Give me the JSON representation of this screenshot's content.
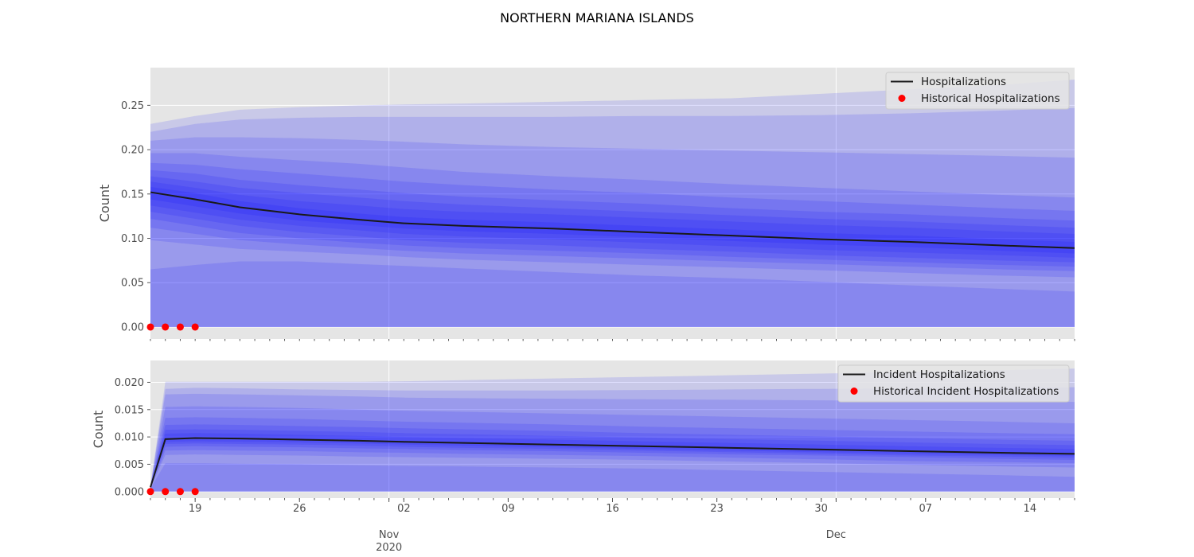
{
  "figure": {
    "title": "NORTHERN MARIANA ISLANDS",
    "colors": {
      "panel_bg": "#e5e5e5",
      "grid": "#ffffff",
      "band": "#0000ff",
      "median_line": "#1a1a1a",
      "historical_point": "#ff0000",
      "tick_text": "#4d4d4d"
    }
  },
  "x_axis": {
    "day_ticks": [
      "19",
      "26",
      "02",
      "09",
      "16",
      "23",
      "30",
      "07",
      "14"
    ],
    "month_labels": [
      "Nov\n2020",
      "Dec"
    ]
  },
  "chart_data": [
    {
      "type": "area",
      "title": "",
      "ylabel": "Count",
      "ylim": [
        -0.0135,
        0.2925
      ],
      "yticks": [
        "0.00",
        "0.05",
        "0.10",
        "0.15",
        "0.20",
        "0.25"
      ],
      "grid": true,
      "legend": {
        "position": "top-right",
        "entries": [
          "Hospitalizations",
          "Historical Hospitalizations"
        ]
      },
      "x": [
        "2020-10-16",
        "2020-10-19",
        "2020-10-22",
        "2020-10-26",
        "2020-10-30",
        "2020-11-02",
        "2020-11-06",
        "2020-11-12",
        "2020-11-18",
        "2020-11-24",
        "2020-11-30",
        "2020-12-06",
        "2020-12-12",
        "2020-12-17"
      ],
      "series": [
        {
          "name": "Hospitalizations",
          "values": [
            0.152,
            0.144,
            0.135,
            0.127,
            0.121,
            0.117,
            0.114,
            0.111,
            0.107,
            0.103,
            0.099,
            0.096,
            0.092,
            0.089
          ]
        },
        {
          "name": "Historical Hospitalizations",
          "x": [
            "2020-10-16",
            "2020-10-17",
            "2020-10-18",
            "2020-10-19"
          ],
          "values": [
            0.0,
            0.0,
            0.0,
            0.0
          ]
        }
      ],
      "bands": [
        {
          "lower": [
            0.0,
            0.0,
            0.0,
            0.0,
            0.0,
            0.0,
            0.0,
            0.0,
            0.0,
            0.0,
            0.0,
            0.0,
            0.0,
            0.0
          ],
          "upper": [
            0.229,
            0.238,
            0.245,
            0.248,
            0.25,
            0.251,
            0.252,
            0.254,
            0.256,
            0.258,
            0.263,
            0.268,
            0.273,
            0.279
          ]
        },
        {
          "lower": [
            0.0,
            0.0,
            0.0,
            0.0,
            0.0,
            0.0,
            0.0,
            0.0,
            0.0,
            0.0,
            0.0,
            0.0,
            0.0,
            0.0
          ],
          "upper": [
            0.22,
            0.229,
            0.234,
            0.236,
            0.237,
            0.237,
            0.237,
            0.237,
            0.238,
            0.238,
            0.239,
            0.241,
            0.244,
            0.247
          ]
        },
        {
          "lower": [
            0.0,
            0.0,
            0.0,
            0.0,
            0.0,
            0.0,
            0.0,
            0.0,
            0.0,
            0.0,
            0.0,
            0.0,
            0.0,
            0.0
          ],
          "upper": [
            0.21,
            0.214,
            0.214,
            0.213,
            0.211,
            0.209,
            0.206,
            0.203,
            0.201,
            0.199,
            0.197,
            0.195,
            0.193,
            0.191
          ]
        },
        {
          "lower": [
            0.065,
            0.07,
            0.074,
            0.074,
            0.071,
            0.069,
            0.066,
            0.062,
            0.058,
            0.055,
            0.051,
            0.047,
            0.043,
            0.04
          ]
        },
        {
          "lower": [
            0.098,
            0.093,
            0.088,
            0.085,
            0.082,
            0.079,
            0.076,
            0.073,
            0.07,
            0.067,
            0.064,
            0.061,
            0.058,
            0.056
          ],
          "upper": [
            0.196,
            0.196,
            0.192,
            0.188,
            0.184,
            0.18,
            0.175,
            0.17,
            0.166,
            0.161,
            0.157,
            0.153,
            0.149,
            0.146
          ]
        },
        {
          "lower": [
            0.112,
            0.105,
            0.098,
            0.093,
            0.089,
            0.086,
            0.083,
            0.08,
            0.077,
            0.074,
            0.071,
            0.068,
            0.065,
            0.063
          ],
          "upper": [
            0.185,
            0.183,
            0.178,
            0.173,
            0.168,
            0.164,
            0.16,
            0.155,
            0.151,
            0.146,
            0.142,
            0.138,
            0.134,
            0.131
          ]
        },
        {
          "lower": [
            0.122,
            0.114,
            0.106,
            0.1,
            0.095,
            0.092,
            0.089,
            0.086,
            0.083,
            0.079,
            0.076,
            0.073,
            0.07,
            0.068
          ],
          "upper": [
            0.177,
            0.173,
            0.166,
            0.16,
            0.155,
            0.151,
            0.147,
            0.143,
            0.139,
            0.134,
            0.13,
            0.127,
            0.123,
            0.12
          ]
        },
        {
          "lower": [
            0.13,
            0.122,
            0.114,
            0.107,
            0.102,
            0.098,
            0.095,
            0.092,
            0.088,
            0.085,
            0.081,
            0.078,
            0.075,
            0.073
          ],
          "upper": [
            0.17,
            0.164,
            0.157,
            0.151,
            0.146,
            0.142,
            0.138,
            0.134,
            0.13,
            0.126,
            0.122,
            0.119,
            0.115,
            0.112
          ]
        },
        {
          "lower": [
            0.137,
            0.129,
            0.121,
            0.114,
            0.109,
            0.105,
            0.102,
            0.099,
            0.095,
            0.091,
            0.087,
            0.084,
            0.081,
            0.078
          ],
          "upper": [
            0.164,
            0.157,
            0.149,
            0.142,
            0.137,
            0.133,
            0.13,
            0.127,
            0.123,
            0.119,
            0.115,
            0.112,
            0.108,
            0.105
          ]
        },
        {
          "lower": [
            0.144,
            0.136,
            0.128,
            0.12,
            0.115,
            0.111,
            0.108,
            0.105,
            0.101,
            0.097,
            0.093,
            0.09,
            0.086,
            0.083
          ],
          "upper": [
            0.158,
            0.151,
            0.142,
            0.134,
            0.128,
            0.124,
            0.121,
            0.118,
            0.114,
            0.11,
            0.106,
            0.103,
            0.099,
            0.096
          ]
        }
      ]
    },
    {
      "type": "area",
      "title": "",
      "ylabel": "Count",
      "ylim": [
        -0.0012,
        0.024
      ],
      "yticks": [
        "0.000",
        "0.005",
        "0.010",
        "0.015",
        "0.020"
      ],
      "grid": true,
      "legend": {
        "position": "top-right",
        "entries": [
          "Incident Hospitalizations",
          "Historical Incident Hospitalizations"
        ]
      },
      "x": [
        "2020-10-16",
        "2020-10-17",
        "2020-10-19",
        "2020-10-22",
        "2020-10-26",
        "2020-10-30",
        "2020-11-02",
        "2020-11-06",
        "2020-11-12",
        "2020-11-18",
        "2020-11-24",
        "2020-11-30",
        "2020-12-06",
        "2020-12-12",
        "2020-12-17"
      ],
      "series": [
        {
          "name": "Incident Hospitalizations",
          "values": [
            0.0008,
            0.0096,
            0.0098,
            0.0097,
            0.0095,
            0.0093,
            0.0091,
            0.0089,
            0.0086,
            0.0083,
            0.008,
            0.0077,
            0.0074,
            0.0071,
            0.0069
          ]
        },
        {
          "name": "Historical Incident Hospitalizations",
          "x": [
            "2020-10-16",
            "2020-10-17",
            "2020-10-18",
            "2020-10-19"
          ],
          "values": [
            0.0,
            0.0,
            0.0,
            0.0
          ]
        }
      ],
      "bands": [
        {
          "lower": [
            0.0,
            0.0,
            0.0,
            0.0,
            0.0,
            0.0,
            0.0,
            0.0,
            0.0,
            0.0,
            0.0,
            0.0,
            0.0,
            0.0,
            0.0
          ],
          "upper": [
            0.001,
            0.0201,
            0.0201,
            0.0201,
            0.0201,
            0.0201,
            0.0202,
            0.0204,
            0.0207,
            0.021,
            0.0213,
            0.0216,
            0.0219,
            0.0222,
            0.0225
          ]
        },
        {
          "lower": [
            0.0,
            0.0,
            0.0,
            0.0,
            0.0,
            0.0,
            0.0,
            0.0,
            0.0,
            0.0,
            0.0,
            0.0,
            0.0,
            0.0,
            0.0
          ],
          "upper": [
            0.001,
            0.0188,
            0.019,
            0.0189,
            0.0187,
            0.0186,
            0.0185,
            0.0185,
            0.0185,
            0.0186,
            0.0187,
            0.0188,
            0.0189,
            0.019,
            0.0191
          ]
        },
        {
          "lower": [
            0.0,
            0.0,
            0.0,
            0.0,
            0.0,
            0.0,
            0.0,
            0.0,
            0.0,
            0.0,
            0.0,
            0.0,
            0.0,
            0.0,
            0.0
          ],
          "upper": [
            0.001,
            0.0178,
            0.0179,
            0.0178,
            0.0176,
            0.0174,
            0.0172,
            0.0171,
            0.017,
            0.0169,
            0.0168,
            0.0167,
            0.0166,
            0.0165,
            0.0164
          ]
        },
        {
          "lower": [
            0.0006,
            0.0052,
            0.0052,
            0.0051,
            0.005,
            0.0048,
            0.0047,
            0.0046,
            0.0044,
            0.0042,
            0.0039,
            0.0036,
            0.0033,
            0.003,
            0.0027
          ]
        },
        {
          "lower": [
            0.0007,
            0.0067,
            0.0068,
            0.0067,
            0.0066,
            0.0064,
            0.0063,
            0.0062,
            0.006,
            0.0058,
            0.0055,
            0.0052,
            0.0049,
            0.0046,
            0.0044
          ],
          "upper": [
            0.001,
            0.0155,
            0.0156,
            0.0155,
            0.0153,
            0.015,
            0.0148,
            0.0146,
            0.0143,
            0.014,
            0.0137,
            0.0134,
            0.0131,
            0.0128,
            0.0125
          ]
        },
        {
          "lower": [
            0.0007,
            0.0075,
            0.0076,
            0.0075,
            0.0074,
            0.0072,
            0.0071,
            0.0069,
            0.0067,
            0.0065,
            0.0062,
            0.0059,
            0.0056,
            0.0054,
            0.0052
          ],
          "upper": [
            0.0009,
            0.0135,
            0.0136,
            0.0135,
            0.0133,
            0.013,
            0.0128,
            0.0126,
            0.0123,
            0.0119,
            0.0116,
            0.0113,
            0.011,
            0.0107,
            0.0105
          ]
        },
        {
          "lower": [
            0.0008,
            0.0082,
            0.0083,
            0.0082,
            0.0081,
            0.0079,
            0.0078,
            0.0076,
            0.0074,
            0.0071,
            0.0068,
            0.0066,
            0.0063,
            0.006,
            0.0058
          ],
          "upper": [
            0.0009,
            0.0122,
            0.0123,
            0.0122,
            0.012,
            0.0118,
            0.0116,
            0.0114,
            0.0111,
            0.0107,
            0.0104,
            0.0101,
            0.0098,
            0.0095,
            0.0093
          ]
        },
        {
          "lower": [
            0.0008,
            0.0087,
            0.0088,
            0.0087,
            0.0086,
            0.0084,
            0.0082,
            0.008,
            0.0078,
            0.0075,
            0.0072,
            0.0069,
            0.0066,
            0.0064,
            0.0062
          ],
          "upper": [
            0.0009,
            0.0113,
            0.0114,
            0.0113,
            0.0111,
            0.0109,
            0.0107,
            0.0105,
            0.0102,
            0.0099,
            0.0096,
            0.0093,
            0.009,
            0.0087,
            0.0085
          ]
        },
        {
          "lower": [
            0.0008,
            0.0091,
            0.0092,
            0.0091,
            0.009,
            0.0088,
            0.0086,
            0.0084,
            0.0081,
            0.0078,
            0.0075,
            0.0072,
            0.0069,
            0.0067,
            0.0065
          ],
          "upper": [
            0.0009,
            0.0106,
            0.0107,
            0.0106,
            0.0104,
            0.0102,
            0.01,
            0.0098,
            0.0095,
            0.0092,
            0.0089,
            0.0086,
            0.0083,
            0.008,
            0.0078
          ]
        }
      ]
    }
  ]
}
